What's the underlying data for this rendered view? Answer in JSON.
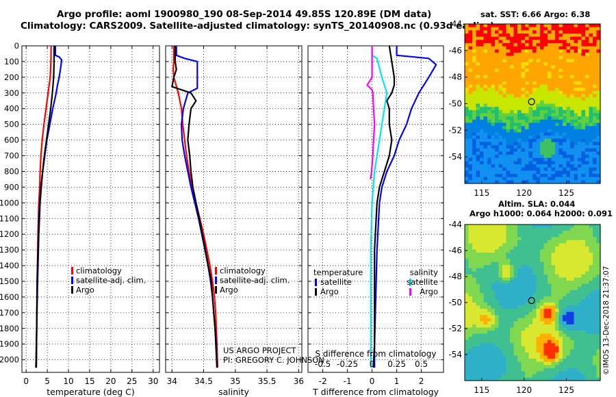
{
  "header": {
    "line1": "Argo profile: aoml 1900980_190 08-Sep-2014 49.85S 120.89E (DM data)",
    "line2": "Climatology: CARS2009. Satellite-adjusted climatology: synTS_20140908.nc (0.93d earlier)"
  },
  "colors": {
    "climatology": "#ff0000",
    "satellite": "#0000ff",
    "argo": "#000000",
    "sat_salinity": "#00e5ee",
    "argo_salinity": "#ff00ff"
  },
  "chart_data": [
    {
      "type": "line",
      "name": "temperature",
      "xlabel": "temperature (deg C)",
      "ylabel": "",
      "xlim": [
        -1,
        31.5
      ],
      "ylim": [
        2080,
        0
      ],
      "xticks": [
        0,
        5,
        10,
        15,
        20,
        25,
        30
      ],
      "yticks": [
        0,
        100,
        200,
        300,
        400,
        500,
        600,
        700,
        800,
        900,
        1000,
        1100,
        1200,
        1300,
        1400,
        1500,
        1600,
        1700,
        1800,
        1900,
        2000
      ],
      "legend": [
        "climatology",
        "satellite-adj. clim.",
        "Argo"
      ],
      "legend_position": "bottom-right",
      "series": [
        {
          "name": "climatology",
          "color": "#ff0000",
          "depth": [
            0,
            100,
            200,
            300,
            400,
            500,
            600,
            700,
            800,
            900,
            1000,
            1200,
            1500,
            1800,
            2050
          ],
          "values": [
            5.9,
            5.85,
            5.7,
            5.2,
            4.7,
            4.2,
            3.8,
            3.5,
            3.3,
            3.2,
            3.0,
            2.8,
            2.6,
            2.5,
            2.4
          ]
        },
        {
          "name": "satellite-adj. clim.",
          "color": "#0000ff",
          "depth": [
            0,
            60,
            70,
            90,
            150,
            200,
            250,
            300,
            400,
            500,
            600,
            700,
            800,
            900,
            1000,
            1200,
            1500,
            1800,
            2050
          ],
          "values": [
            6.9,
            6.9,
            7.8,
            8.4,
            8.1,
            7.8,
            7.4,
            7.1,
            6.3,
            5.6,
            4.9,
            4.4,
            3.9,
            3.6,
            3.3,
            3.0,
            2.7,
            2.5,
            2.3
          ]
        },
        {
          "name": "Argo",
          "color": "#000000",
          "depth": [
            0,
            100,
            200,
            300,
            400,
            500,
            600,
            700,
            800,
            900,
            1000,
            1200,
            1500,
            1800,
            2050
          ],
          "values": [
            6.6,
            6.6,
            6.5,
            6.2,
            5.8,
            5.3,
            4.8,
            4.3,
            3.9,
            3.5,
            3.2,
            2.9,
            2.6,
            2.5,
            2.4
          ]
        }
      ]
    },
    {
      "type": "line",
      "name": "salinity",
      "xlabel": "salinity",
      "ylabel": "",
      "xlim": [
        33.9,
        36.05
      ],
      "ylim": [
        2080,
        0
      ],
      "xticks": [
        34,
        34.5,
        35,
        35.5,
        36
      ],
      "xticklabels": [
        "34",
        "34.5",
        "35",
        "35.5",
        "36"
      ],
      "legend": [
        "climatology",
        "satellite-adj. clim.",
        "Argo"
      ],
      "legend_position": "bottom-right",
      "series": [
        {
          "name": "climatology",
          "color": "#ff0000",
          "depth": [
            0,
            100,
            150,
            200,
            300,
            400,
            500,
            600,
            700,
            800,
            900,
            1000,
            1100,
            1200,
            1300,
            1400,
            1500,
            1600,
            1700,
            1800,
            1900,
            2050
          ],
          "values": [
            34.03,
            34.03,
            34.02,
            34.03,
            34.1,
            34.15,
            34.17,
            34.2,
            34.23,
            34.27,
            34.32,
            34.38,
            34.44,
            34.5,
            34.55,
            34.6,
            34.64,
            34.67,
            34.69,
            34.7,
            34.71,
            34.72
          ]
        },
        {
          "name": "satellite-adj. clim.",
          "color": "#0000ff",
          "depth": [
            0,
            60,
            80,
            100,
            200,
            270,
            300,
            400,
            500,
            600,
            700,
            800,
            900,
            1000,
            1100,
            1200,
            1300,
            1400,
            1500,
            1600,
            1700,
            1800,
            1900,
            2050
          ],
          "values": [
            34.07,
            34.07,
            34.2,
            34.4,
            34.4,
            34.4,
            34.25,
            34.18,
            34.15,
            34.16,
            34.2,
            34.25,
            34.3,
            34.36,
            34.42,
            34.47,
            34.52,
            34.57,
            34.61,
            34.64,
            34.66,
            34.68,
            34.7,
            34.71
          ]
        },
        {
          "name": "Argo",
          "color": "#000000",
          "depth": [
            0,
            100,
            150,
            200,
            260,
            300,
            350,
            400,
            500,
            600,
            700,
            800,
            900,
            1000,
            1200,
            1500,
            1800,
            2050
          ],
          "values": [
            34.05,
            34.05,
            34.07,
            34.03,
            34.0,
            34.3,
            34.38,
            34.3,
            34.27,
            34.25,
            34.28,
            34.3,
            34.33,
            34.38,
            34.48,
            34.62,
            34.68,
            34.71
          ]
        }
      ]
    },
    {
      "type": "line",
      "name": "difference",
      "xlabel": "T difference from climatology",
      "x2label": "S difference from climatology",
      "xlim": [
        -2.6,
        2.9
      ],
      "ylim": [
        2080,
        0
      ],
      "xticks": [
        -2,
        -1,
        0,
        1,
        2
      ],
      "x2ticklabels": [
        "-0.5",
        "-0.25",
        "0",
        "0.25",
        "0.5"
      ],
      "legend_left_title": "temperature",
      "legend_right_title": "salinity",
      "legend": [
        "satellite",
        "Argo",
        "satellite",
        "Argo"
      ],
      "legend_position": "bottom",
      "series": [
        {
          "name": "temperature satellite",
          "color": "#0000ff",
          "depth": [
            0,
            60,
            80,
            120,
            200,
            300,
            400,
            500,
            600,
            700,
            800,
            900,
            1000,
            1300,
            1600,
            1900,
            2050
          ],
          "values": [
            1.0,
            1.0,
            2.3,
            2.6,
            2.3,
            1.9,
            1.6,
            1.4,
            1.1,
            0.9,
            0.6,
            0.4,
            0.3,
            0.2,
            0.15,
            0.1,
            0.1
          ]
        },
        {
          "name": "temperature Argo",
          "color": "#000000",
          "depth": [
            0,
            100,
            200,
            250,
            300,
            350,
            400,
            500,
            600,
            700,
            800,
            900,
            1000,
            1300,
            1600,
            1900,
            2050
          ],
          "values": [
            0.7,
            0.8,
            0.9,
            0.9,
            0.8,
            0.6,
            0.7,
            0.7,
            0.8,
            0.7,
            0.5,
            0.3,
            0.2,
            0.1,
            0.1,
            0.1,
            0.05
          ]
        },
        {
          "name": "salinity satellite",
          "color": "#00e5ee",
          "depth": [
            0,
            60,
            80,
            200,
            300,
            400,
            500,
            600,
            700,
            800,
            900,
            1000,
            1300,
            1600,
            1900,
            2050
          ],
          "values": [
            0.0,
            0.0,
            0.2,
            0.4,
            0.6,
            0.5,
            0.4,
            0.3,
            0.2,
            0.1,
            0.05,
            0.0,
            -0.05,
            -0.05,
            -0.05,
            -0.05
          ]
        },
        {
          "name": "salinity Argo",
          "color": "#ff00ff",
          "depth": [
            0,
            200,
            250,
            280,
            300,
            400,
            500,
            600,
            700,
            800,
            850
          ],
          "values": [
            0.0,
            0.0,
            -0.2,
            0.0,
            0.03,
            0.06,
            0.1,
            0.06,
            0.03,
            -0.02,
            -0.06
          ]
        }
      ]
    },
    {
      "type": "heatmap",
      "name": "sst-map",
      "title": "sat. SST: 6.66 Argo: 6.38",
      "xticks": [
        115,
        120,
        125
      ],
      "yticks": [
        -44,
        -46,
        -48,
        -50,
        -52,
        -54
      ],
      "xlim": [
        113,
        129
      ],
      "ylim": [
        -56,
        -44
      ],
      "marker": [
        120.89,
        -49.85
      ]
    },
    {
      "type": "heatmap",
      "name": "sla-map",
      "title1": "Altim. SLA: 0.044",
      "title2": "Argo h1000: 0.064 h2000: 0.091",
      "xticks": [
        115,
        120,
        125
      ],
      "yticks": [
        -44,
        -46,
        -48,
        -50,
        -52,
        -54
      ],
      "xlim": [
        113,
        129
      ],
      "ylim": [
        -56,
        -44
      ],
      "marker": [
        120.89,
        -49.85
      ]
    }
  ],
  "credits": {
    "project": "US ARGO PROJECT",
    "pi": "PI: GREGORY C. JOHNSON"
  },
  "side_stamp": "©IMOS 13-Dec-2018 21:37:07"
}
